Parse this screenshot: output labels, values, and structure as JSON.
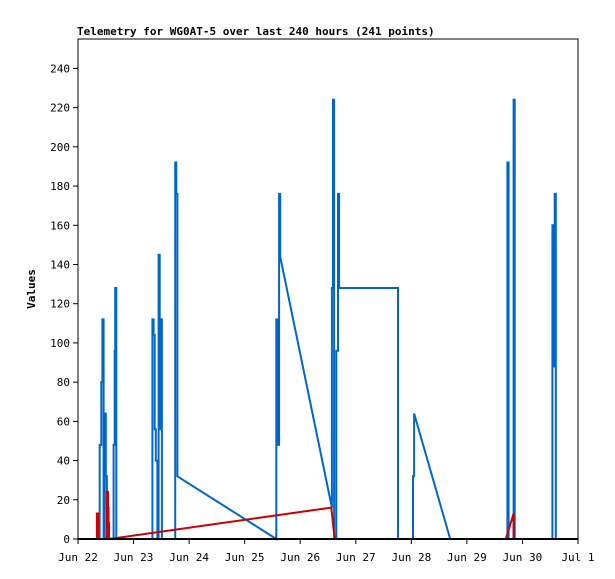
{
  "chart_data": {
    "type": "line",
    "title": "Telemetry for WG0AT-5 over last 240 hours (241 points)",
    "ylabel": "Values",
    "xlabel": "",
    "ylim": [
      0,
      255
    ],
    "y_ticks": [
      0,
      20,
      40,
      60,
      80,
      100,
      120,
      140,
      160,
      180,
      200,
      220,
      240
    ],
    "xlim": [
      0,
      9
    ],
    "x_ticks": [
      {
        "value": 0,
        "label": "Jun 22"
      },
      {
        "value": 1,
        "label": "Jun 23"
      },
      {
        "value": 2,
        "label": "Jun 24"
      },
      {
        "value": 3,
        "label": "Jun 25"
      },
      {
        "value": 4,
        "label": "Jun 26"
      },
      {
        "value": 5,
        "label": "Jun 27"
      },
      {
        "value": 6,
        "label": "Jun 28"
      },
      {
        "value": 7,
        "label": "Jun 29"
      },
      {
        "value": 8,
        "label": "Jun 30"
      },
      {
        "value": 9,
        "label": "Jul 1"
      }
    ],
    "grid": false,
    "series": [
      {
        "color": "#0066cc",
        "points": [
          [
            0.39,
            0
          ],
          [
            0.39,
            48
          ],
          [
            0.42,
            48
          ],
          [
            0.42,
            80
          ],
          [
            0.44,
            80
          ],
          [
            0.44,
            112
          ],
          [
            0.46,
            112
          ],
          [
            0.46,
            0
          ],
          [
            0.48,
            0
          ],
          [
            0.48,
            64
          ],
          [
            0.5,
            64
          ],
          [
            0.5,
            32
          ],
          [
            0.52,
            32
          ],
          [
            0.52,
            16
          ],
          [
            0.55,
            16
          ],
          [
            0.55,
            0
          ],
          [
            0.64,
            0
          ],
          [
            0.64,
            48
          ],
          [
            0.66,
            48
          ],
          [
            0.66,
            96
          ],
          [
            0.67,
            96
          ],
          [
            0.67,
            128
          ],
          [
            0.69,
            128
          ],
          [
            0.69,
            0
          ],
          [
            1.34,
            0
          ],
          [
            1.34,
            112
          ],
          [
            1.36,
            112
          ],
          [
            1.36,
            104
          ],
          [
            1.38,
            104
          ],
          [
            1.38,
            56
          ],
          [
            1.4,
            56
          ],
          [
            1.4,
            40
          ],
          [
            1.43,
            40
          ],
          [
            1.43,
            0
          ],
          [
            1.45,
            0
          ],
          [
            1.45,
            145
          ],
          [
            1.47,
            145
          ],
          [
            1.47,
            56
          ],
          [
            1.49,
            56
          ],
          [
            1.49,
            112
          ],
          [
            1.51,
            112
          ],
          [
            1.51,
            0
          ],
          [
            1.75,
            0
          ],
          [
            1.75,
            192
          ],
          [
            1.77,
            192
          ],
          [
            1.77,
            176
          ],
          [
            1.79,
            176
          ],
          [
            1.79,
            32
          ],
          [
            3.57,
            0
          ],
          [
            3.57,
            112
          ],
          [
            3.59,
            112
          ],
          [
            3.59,
            48
          ],
          [
            3.62,
            48
          ],
          [
            3.62,
            176
          ],
          [
            3.64,
            176
          ],
          [
            3.64,
            144
          ],
          [
            4.57,
            16
          ],
          [
            4.57,
            128
          ],
          [
            4.59,
            128
          ],
          [
            4.59,
            224
          ],
          [
            4.61,
            224
          ],
          [
            4.61,
            0
          ],
          [
            4.65,
            0
          ],
          [
            4.65,
            96
          ],
          [
            4.68,
            96
          ],
          [
            4.68,
            176
          ],
          [
            4.7,
            176
          ],
          [
            4.7,
            128
          ],
          [
            4.72,
            128
          ],
          [
            5.76,
            128
          ],
          [
            5.76,
            0
          ],
          [
            6.03,
            0
          ],
          [
            6.03,
            32
          ],
          [
            6.05,
            32
          ],
          [
            6.05,
            64
          ],
          [
            6.7,
            0
          ],
          [
            7.73,
            0
          ],
          [
            7.73,
            192
          ],
          [
            7.75,
            192
          ],
          [
            7.75,
            0
          ],
          [
            7.84,
            0
          ],
          [
            7.84,
            224
          ],
          [
            7.86,
            224
          ],
          [
            7.86,
            0
          ],
          [
            8.54,
            0
          ],
          [
            8.54,
            160
          ],
          [
            8.56,
            160
          ],
          [
            8.56,
            88
          ],
          [
            8.58,
            88
          ],
          [
            8.58,
            176
          ],
          [
            8.6,
            176
          ],
          [
            8.6,
            0
          ],
          [
            8.64,
            0
          ]
        ]
      },
      {
        "color": "#cc0000",
        "points": [
          [
            0.34,
            0
          ],
          [
            0.34,
            13
          ],
          [
            0.36,
            13
          ],
          [
            0.36,
            0
          ],
          [
            0.52,
            0
          ],
          [
            0.52,
            24
          ],
          [
            0.54,
            24
          ],
          [
            0.54,
            8
          ],
          [
            0.56,
            8
          ],
          [
            0.56,
            0
          ],
          [
            4.56,
            16
          ],
          [
            4.62,
            0
          ],
          [
            7.7,
            0
          ],
          [
            7.84,
            13
          ],
          [
            7.84,
            0
          ]
        ]
      },
      {
        "color": "#000000",
        "points": [
          [
            0.0,
            0
          ],
          [
            9.0,
            0
          ]
        ]
      }
    ]
  }
}
